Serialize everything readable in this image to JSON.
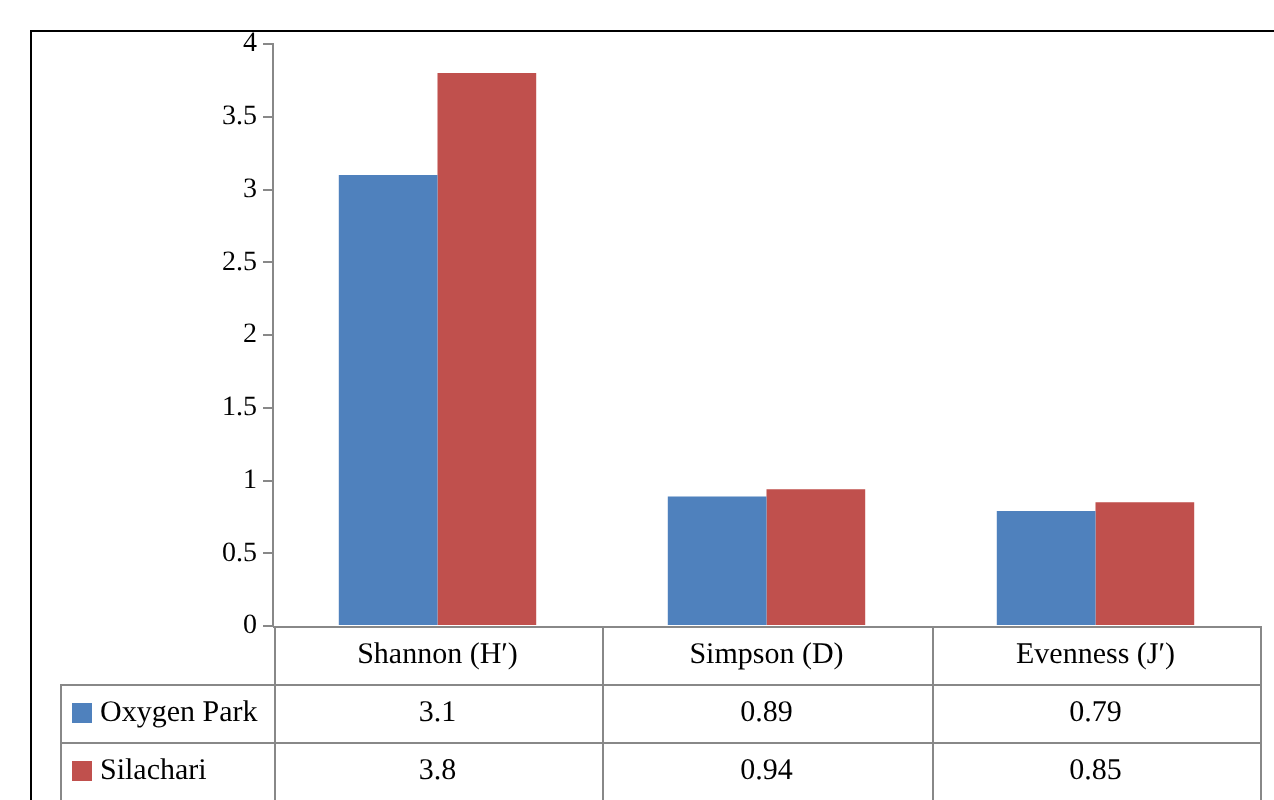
{
  "chart_data": {
    "type": "bar",
    "categories": [
      "Shannon (H′)",
      "Simpson (D)",
      "Evenness (J′)"
    ],
    "series": [
      {
        "name": "Oxygen Park",
        "color": "#4f81bd",
        "values": [
          3.1,
          0.89,
          0.79
        ]
      },
      {
        "name": "Silachari",
        "color": "#c0504d",
        "values": [
          3.8,
          0.94,
          0.85
        ]
      }
    ],
    "ylim": [
      0,
      4
    ],
    "yticks": [
      0,
      0.5,
      1,
      1.5,
      2,
      2.5,
      3,
      3.5,
      4
    ],
    "grid": false,
    "legend": "bottom",
    "data_labels": true
  }
}
